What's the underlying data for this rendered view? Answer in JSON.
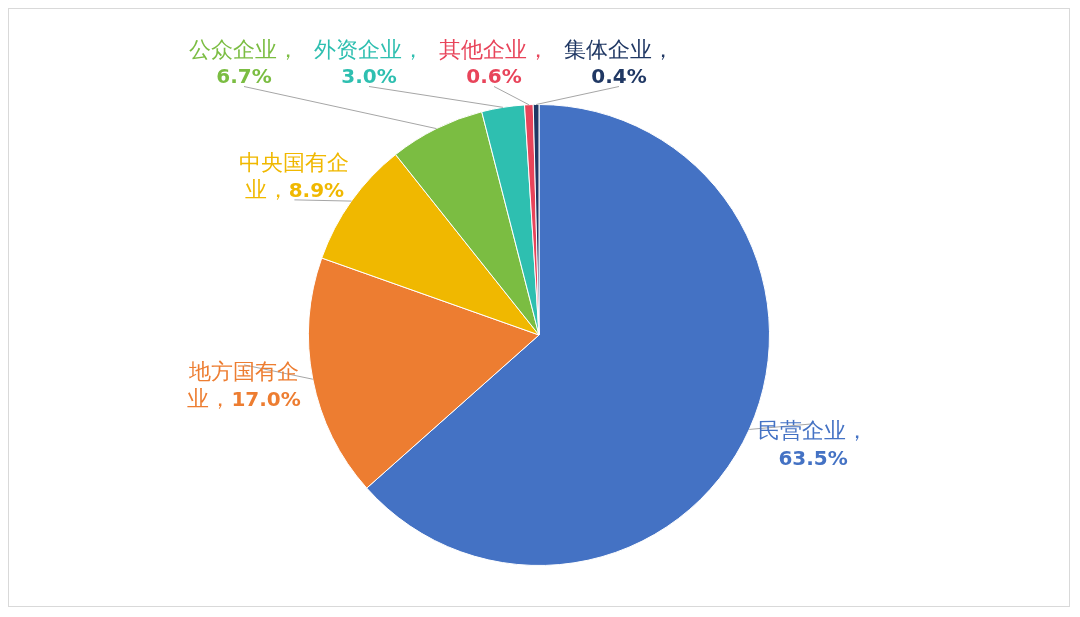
{
  "chart_data": {
    "type": "pie",
    "categories": [
      "民营企业",
      "地方国有企业",
      "中央国有企业",
      "公众企业",
      "外资企业",
      "其他企业",
      "集体企业"
    ],
    "values": [
      63.5,
      17.0,
      8.9,
      6.7,
      3.0,
      0.6,
      0.4
    ],
    "value_labels": [
      "，63.5%",
      "，17.0%",
      "，8.9%",
      "，6.7%",
      "，3.0%",
      "，0.6%",
      "，0.4%"
    ],
    "colors": [
      "#4472c4",
      "#ed7d31",
      "#f0b800",
      "#7bbd42",
      "#2ebfb0",
      "#e8445a",
      "#203864"
    ],
    "legend": false
  }
}
